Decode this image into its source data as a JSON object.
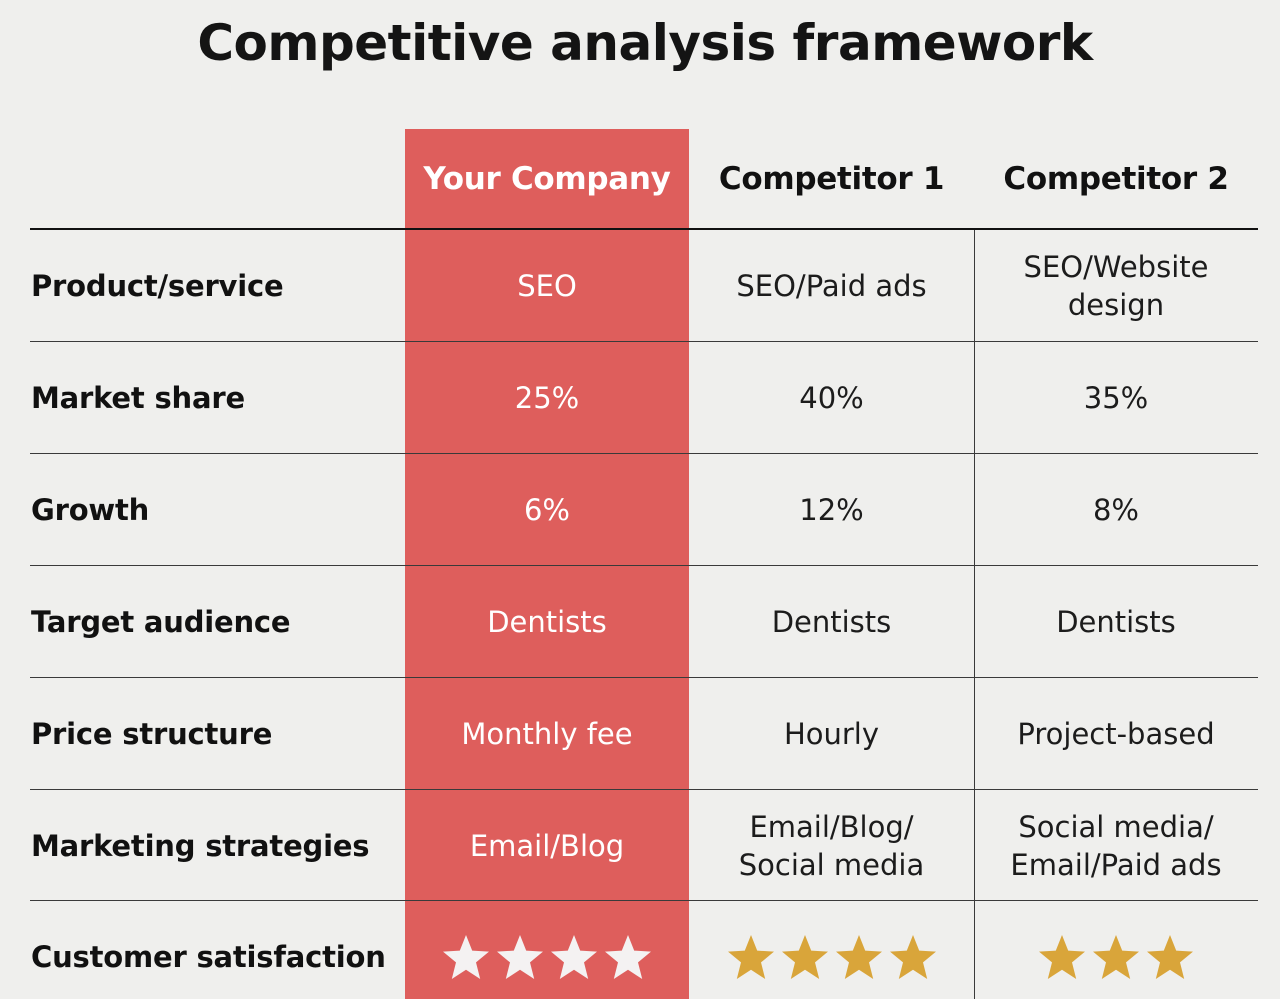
{
  "title": "Competitive analysis framework",
  "headers": {
    "your_company": "Your Company",
    "competitor_1": "Competitor 1",
    "competitor_2": "Competitor 2"
  },
  "rows": [
    {
      "label": "Product/service",
      "your_company": "SEO",
      "competitor_1": "SEO/Paid ads",
      "competitor_2": "SEO/Website\ndesign"
    },
    {
      "label": "Market share",
      "your_company": "25%",
      "competitor_1": "40%",
      "competitor_2": "35%"
    },
    {
      "label": "Growth",
      "your_company": "6%",
      "competitor_1": "12%",
      "competitor_2": "8%"
    },
    {
      "label": "Target audience",
      "your_company": "Dentists",
      "competitor_1": "Dentists",
      "competitor_2": "Dentists"
    },
    {
      "label": "Price structure",
      "your_company": "Monthly fee",
      "competitor_1": "Hourly",
      "competitor_2": "Project-based"
    },
    {
      "label": "Marketing strategies",
      "your_company": "Email/Blog",
      "competitor_1": "Email/Blog/\nSocial media",
      "competitor_2": "Social media/\nEmail/Paid ads"
    }
  ],
  "satisfaction": {
    "label": "Customer satisfaction",
    "your_company_stars": 4,
    "competitor_1_stars": 4,
    "competitor_2_stars": 3,
    "icon": "star-icon"
  },
  "colors": {
    "highlight": "#de5e5c",
    "background": "#efefed",
    "star_white": "#f4f2f2",
    "star_gold": "#d9a53a"
  }
}
